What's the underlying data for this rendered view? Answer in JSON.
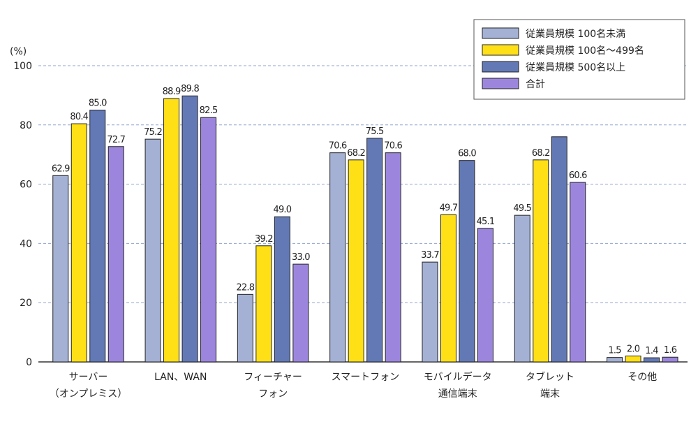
{
  "chart_data": {
    "type": "bar",
    "unit_label": "(%)",
    "ylim": [
      0,
      100
    ],
    "yticks": [
      0,
      20,
      40,
      60,
      80,
      100
    ],
    "grid": true,
    "legend_position": "top-right",
    "categories": [
      [
        "サーバー",
        "（オンプレミス）"
      ],
      [
        "LAN、WAN"
      ],
      [
        "フィーチャー",
        "フォン"
      ],
      [
        "スマートフォン"
      ],
      [
        "モバイルデータ",
        "通信端末"
      ],
      [
        "タブレット",
        "端末"
      ],
      [
        "その他"
      ]
    ],
    "series": [
      {
        "name": "従業員規模 100名未満",
        "color": "#a4b1d4",
        "values": [
          62.9,
          75.2,
          22.8,
          70.6,
          33.7,
          49.5,
          1.5
        ],
        "labels": [
          "62.9",
          "75.2",
          "22.8",
          "70.6",
          "33.7",
          "49.5",
          "1.5"
        ]
      },
      {
        "name": "従業員規模 100名〜499名",
        "color": "#ffe016",
        "values": [
          80.4,
          88.9,
          39.2,
          68.2,
          49.7,
          68.2,
          2.0
        ],
        "labels": [
          "80.4",
          "88.9",
          "39.2",
          "68.2",
          "49.7",
          "68.2",
          "2.0"
        ]
      },
      {
        "name": "従業員規模 500名以上",
        "color": "#6379b6",
        "values": [
          85.0,
          89.8,
          49.0,
          75.5,
          68.0,
          76.0,
          1.4
        ],
        "labels": [
          "85.0",
          "89.8",
          "49.0",
          "75.5",
          "68.0",
          "",
          "1.4"
        ]
      },
      {
        "name": "合計",
        "color": "#9c86dd",
        "values": [
          72.7,
          82.5,
          33.0,
          70.6,
          45.1,
          60.6,
          1.6
        ],
        "labels": [
          "72.7",
          "82.5",
          "33.0",
          "70.6",
          "45.1",
          "60.6",
          "1.6"
        ]
      }
    ]
  }
}
